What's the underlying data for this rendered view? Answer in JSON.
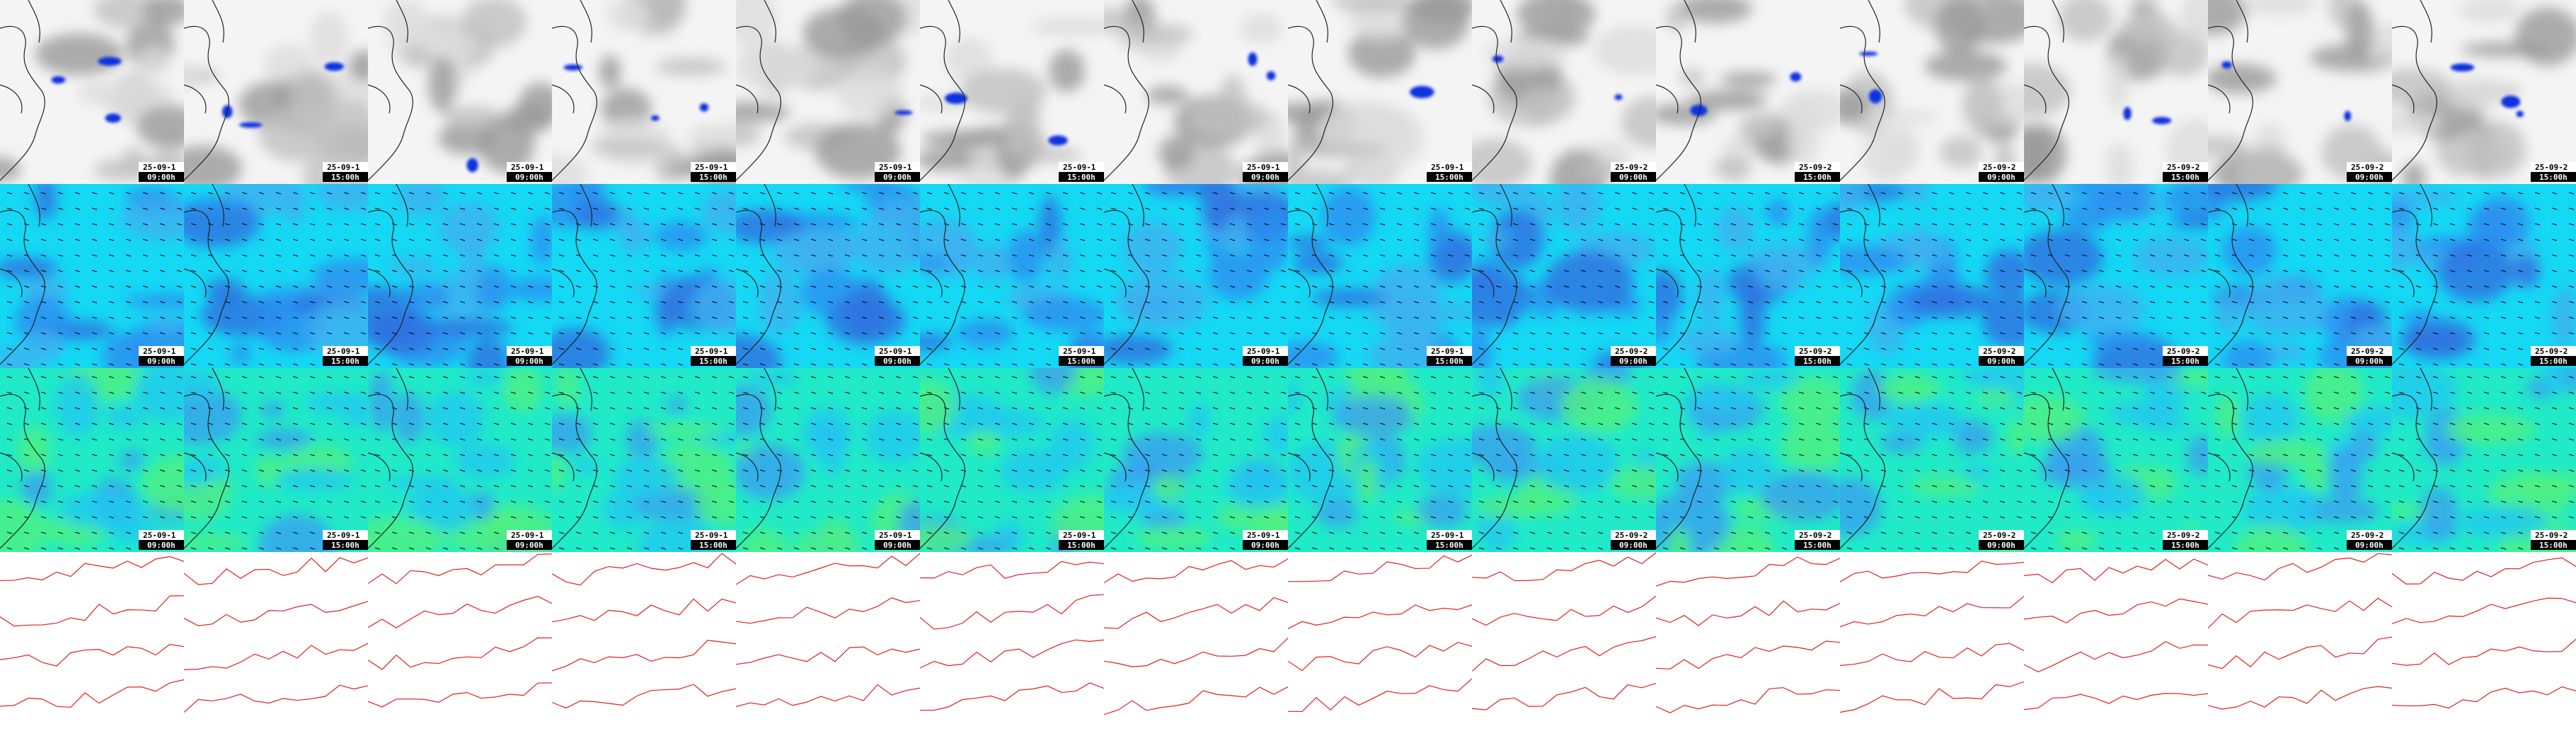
{
  "frames": [
    {
      "date": "25-09-1",
      "time": "09:00h"
    },
    {
      "date": "25-09-1",
      "time": "15:00h"
    },
    {
      "date": "25-09-1",
      "time": "09:00h"
    },
    {
      "date": "25-09-1",
      "time": "15:00h"
    },
    {
      "date": "25-09-1",
      "time": "09:00h"
    },
    {
      "date": "25-09-1",
      "time": "15:00h"
    },
    {
      "date": "25-09-1",
      "time": "09:00h"
    },
    {
      "date": "25-09-1",
      "time": "15:00h"
    },
    {
      "date": "25-09-2",
      "time": "09:00h"
    },
    {
      "date": "25-09-2",
      "time": "15:00h"
    },
    {
      "date": "25-09-2",
      "time": "09:00h"
    },
    {
      "date": "25-09-2",
      "time": "15:00h"
    },
    {
      "date": "25-09-2",
      "time": "09:00h"
    },
    {
      "date": "25-09-2",
      "time": "15:00h"
    }
  ]
}
